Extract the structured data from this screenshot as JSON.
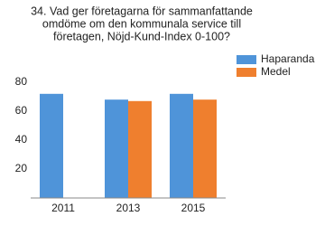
{
  "chart_data": {
    "type": "bar",
    "title": [
      "34. Vad ger företagarna för sammanfattande",
      "omdöme om den kommunala service till",
      "företagen, Nöjd-Kund-Index 0-100?"
    ],
    "categories": [
      "2011",
      "2013",
      "2015"
    ],
    "series": [
      {
        "name": "Haparanda",
        "color": "#4f94d9",
        "values": [
          72,
          68,
          72
        ]
      },
      {
        "name": "Medel",
        "color": "#ef7f2e",
        "values": [
          null,
          67,
          68
        ]
      }
    ],
    "ylim": [
      0,
      100
    ],
    "yticks": [
      20,
      40,
      60,
      80
    ],
    "grid": false,
    "legend": "top-right"
  }
}
